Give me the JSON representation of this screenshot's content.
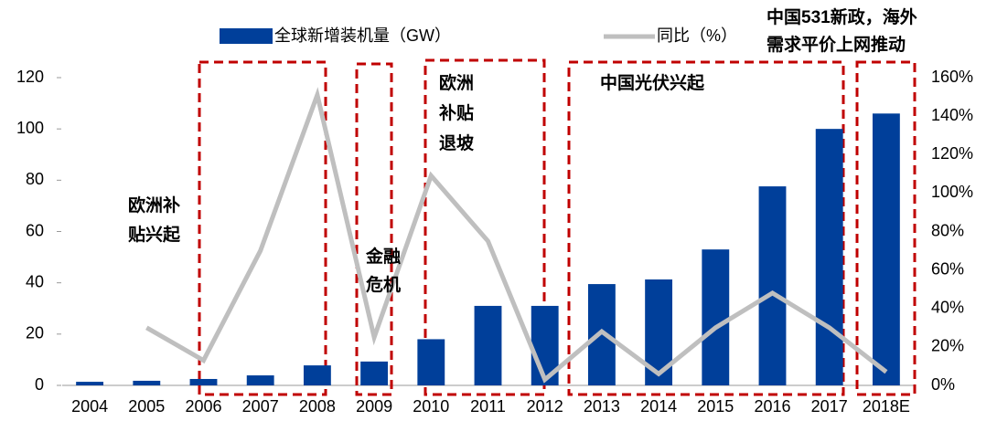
{
  "chart_data": {
    "type": "bar-line",
    "categories": [
      "2004",
      "2005",
      "2006",
      "2007",
      "2008",
      "2009",
      "2010",
      "2011",
      "2012",
      "2013",
      "2014",
      "2015",
      "2016",
      "2017",
      "2018E"
    ],
    "series": [
      {
        "name": "全球新增装机量（GW）",
        "color": "#003f9a",
        "type": "bar",
        "values": [
          1.4,
          1.8,
          2.5,
          3.9,
          7.8,
          9.3,
          18,
          31,
          31,
          39.5,
          41.3,
          53,
          77.6,
          100,
          106
        ]
      },
      {
        "name": "同比（%）",
        "color": "#bfbfbf",
        "type": "line",
        "axis": "y2",
        "values": [
          null,
          30,
          13,
          70,
          151,
          25,
          109,
          75,
          3,
          28,
          6,
          30,
          48,
          30,
          7
        ]
      }
    ],
    "ylim": [
      0,
      120
    ],
    "yticks": [
      0,
      20,
      40,
      60,
      80,
      100,
      120
    ],
    "y2lim": [
      0,
      160
    ],
    "y2ticks": [
      {
        "value": 0,
        "label": "0%"
      },
      {
        "value": 20,
        "label": "20%"
      },
      {
        "value": 40,
        "label": "40%"
      },
      {
        "value": 60,
        "label": "60%"
      },
      {
        "value": 80,
        "label": "80%"
      },
      {
        "value": 100,
        "label": "100%"
      },
      {
        "value": 120,
        "label": "120%"
      },
      {
        "value": 140,
        "label": "140%"
      },
      {
        "value": 160,
        "label": "160%"
      }
    ],
    "annotations": [
      {
        "lines": [
          "欧洲补",
          "贴兴起"
        ]
      },
      {
        "lines": [
          "金融",
          "危机"
        ]
      },
      {
        "lines": [
          "欧洲",
          "补贴",
          "退坡"
        ]
      },
      {
        "lines": [
          "中国光伏兴起"
        ]
      },
      {
        "lines": [
          "中国531新政，海外",
          "需求平价上网推动"
        ]
      }
    ]
  }
}
